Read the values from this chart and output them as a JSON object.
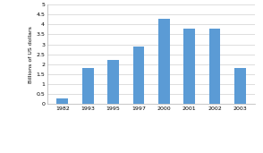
{
  "categories": [
    "1982",
    "1993",
    "1995",
    "1997",
    "2000",
    "2001",
    "2002",
    "2003"
  ],
  "values": [
    0.27,
    1.8,
    2.2,
    2.9,
    4.3,
    3.8,
    3.8,
    1.8
  ],
  "bar_color": "#5b9bd5",
  "ylabel": "Billions of US dollars",
  "ylim": [
    0,
    5
  ],
  "yticks": [
    0,
    0.5,
    1.0,
    1.5,
    2.0,
    2.5,
    3.0,
    3.5,
    4.0,
    4.5,
    5.0
  ],
  "ytick_labels": [
    "0",
    "0.5",
    "1",
    "1.5",
    "2",
    "2.5",
    "3",
    "3.5",
    "4",
    "4.5",
    "5"
  ],
  "background_color": "#ffffff",
  "grid_color": "#d0d0d0",
  "bar_width": 0.45,
  "figsize": [
    2.94,
    1.71
  ],
  "dpi": 100
}
